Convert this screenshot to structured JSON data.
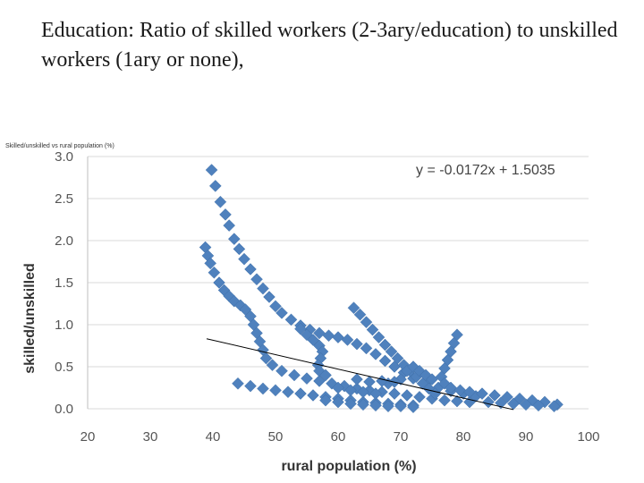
{
  "slide": {
    "title": "Education: Ratio of skilled workers (2-3ary/education) to unskilled workers (1ary or none),"
  },
  "chart_data": {
    "type": "scatter",
    "title": "Skilled/unskilled vs rural population (%)",
    "xlabel": "rural population (%)",
    "ylabel": "skilled/unskilled",
    "xlim": [
      20,
      100
    ],
    "ylim": [
      0,
      3
    ],
    "xticks": [
      "20",
      "30",
      "40",
      "50",
      "60",
      "70",
      "80",
      "90",
      "100"
    ],
    "yticks": [
      "0.0",
      "0.5",
      "1.0",
      "1.5",
      "2.0",
      "2.5",
      "3.0"
    ],
    "grid": "horizontal",
    "marker": "diamond",
    "marker_color": "#4f81bd",
    "trendline": {
      "equation": "y = -0.0172x + 1.5035",
      "slope": -0.0172,
      "intercept": 1.5035,
      "x_range": [
        39,
        88
      ],
      "color": "#000000"
    },
    "series": [
      {
        "points": [
          [
            39.8,
            2.84
          ],
          [
            40.4,
            2.65
          ],
          [
            41.2,
            2.46
          ],
          [
            42.0,
            2.31
          ],
          [
            42.6,
            2.18
          ],
          [
            43.4,
            2.02
          ],
          [
            44.2,
            1.9
          ],
          [
            45.0,
            1.78
          ],
          [
            46.0,
            1.66
          ],
          [
            47.0,
            1.54
          ],
          [
            48.0,
            1.43
          ],
          [
            49.0,
            1.33
          ],
          [
            50.0,
            1.22
          ],
          [
            51.0,
            1.14
          ],
          [
            52.5,
            1.06
          ],
          [
            54.0,
            0.99
          ],
          [
            55.5,
            0.94
          ],
          [
            57.0,
            0.9
          ],
          [
            58.5,
            0.87
          ],
          [
            60.0,
            0.85
          ],
          [
            61.5,
            0.82
          ],
          [
            63.0,
            0.77
          ],
          [
            64.5,
            0.72
          ],
          [
            66.0,
            0.65
          ],
          [
            67.5,
            0.57
          ],
          [
            69.0,
            0.5
          ],
          [
            70.5,
            0.43
          ],
          [
            72.0,
            0.36
          ],
          [
            74.0,
            0.3
          ],
          [
            76.0,
            0.25
          ],
          [
            78.0,
            0.21
          ],
          [
            80.0,
            0.18
          ],
          [
            82.0,
            0.15
          ],
          [
            38.8,
            1.92
          ],
          [
            39.2,
            1.82
          ],
          [
            39.6,
            1.73
          ],
          [
            40.2,
            1.62
          ],
          [
            41.0,
            1.5
          ],
          [
            41.8,
            1.41
          ],
          [
            42.6,
            1.34
          ],
          [
            43.4,
            1.28
          ],
          [
            44.4,
            1.23
          ],
          [
            45.2,
            1.18
          ],
          [
            46.0,
            1.1
          ],
          [
            46.5,
            1.0
          ],
          [
            47.0,
            0.9
          ],
          [
            47.5,
            0.8
          ],
          [
            48.0,
            0.7
          ],
          [
            48.5,
            0.6
          ],
          [
            49.5,
            0.52
          ],
          [
            51.0,
            0.45
          ],
          [
            53.0,
            0.4
          ],
          [
            55.0,
            0.36
          ],
          [
            57.0,
            0.33
          ],
          [
            59.0,
            0.3
          ],
          [
            61.0,
            0.27
          ],
          [
            63.0,
            0.24
          ],
          [
            65.0,
            0.22
          ],
          [
            67.0,
            0.2
          ],
          [
            69.0,
            0.18
          ],
          [
            71.0,
            0.16
          ],
          [
            73.0,
            0.14
          ],
          [
            75.0,
            0.12
          ],
          [
            77.0,
            0.1
          ],
          [
            79.0,
            0.09
          ],
          [
            81.0,
            0.08
          ],
          [
            44.0,
            0.3
          ],
          [
            46.0,
            0.27
          ],
          [
            48.0,
            0.24
          ],
          [
            50.0,
            0.22
          ],
          [
            52.0,
            0.2
          ],
          [
            54.0,
            0.18
          ],
          [
            56.0,
            0.16
          ],
          [
            58.0,
            0.14
          ],
          [
            60.0,
            0.12
          ],
          [
            62.0,
            0.1
          ],
          [
            64.0,
            0.08
          ],
          [
            66.0,
            0.07
          ],
          [
            68.0,
            0.06
          ],
          [
            70.0,
            0.05
          ],
          [
            72.0,
            0.04
          ],
          [
            54.0,
            0.95
          ],
          [
            55.0,
            0.88
          ],
          [
            56.0,
            0.82
          ],
          [
            57.0,
            0.75
          ],
          [
            57.5,
            0.68
          ],
          [
            57.2,
            0.6
          ],
          [
            56.8,
            0.52
          ],
          [
            57.0,
            0.45
          ],
          [
            58.0,
            0.4
          ],
          [
            62.5,
            1.2
          ],
          [
            63.5,
            1.12
          ],
          [
            64.5,
            1.03
          ],
          [
            65.5,
            0.94
          ],
          [
            66.5,
            0.85
          ],
          [
            67.5,
            0.76
          ],
          [
            68.5,
            0.68
          ],
          [
            69.5,
            0.6
          ],
          [
            70.5,
            0.52
          ],
          [
            71.5,
            0.45
          ],
          [
            72.5,
            0.38
          ],
          [
            73.5,
            0.3
          ],
          [
            74.5,
            0.24
          ],
          [
            75.5,
            0.18
          ],
          [
            79.0,
            0.88
          ],
          [
            78.5,
            0.78
          ],
          [
            78.0,
            0.68
          ],
          [
            77.5,
            0.58
          ],
          [
            77.0,
            0.48
          ],
          [
            76.5,
            0.38
          ],
          [
            77.0,
            0.3
          ],
          [
            78.0,
            0.25
          ],
          [
            79.5,
            0.22
          ],
          [
            81.0,
            0.2
          ],
          [
            83.0,
            0.18
          ],
          [
            85.0,
            0.16
          ],
          [
            87.0,
            0.14
          ],
          [
            89.0,
            0.12
          ],
          [
            91.0,
            0.1
          ],
          [
            93.0,
            0.08
          ],
          [
            95.0,
            0.05
          ],
          [
            94.5,
            0.03
          ],
          [
            92.0,
            0.04
          ],
          [
            90.0,
            0.05
          ],
          [
            88.0,
            0.06
          ],
          [
            86.0,
            0.07
          ],
          [
            84.0,
            0.08
          ],
          [
            60.0,
            0.25
          ],
          [
            62.0,
            0.22
          ],
          [
            64.0,
            0.2
          ],
          [
            66.0,
            0.18
          ],
          [
            68.0,
            0.3
          ],
          [
            70.0,
            0.35
          ],
          [
            71.0,
            0.45
          ],
          [
            72.0,
            0.5
          ],
          [
            73.0,
            0.45
          ],
          [
            74.0,
            0.4
          ],
          [
            75.0,
            0.35
          ],
          [
            63.0,
            0.35
          ],
          [
            65.0,
            0.32
          ],
          [
            67.0,
            0.33
          ],
          [
            69.0,
            0.32
          ],
          [
            58.0,
            0.1
          ],
          [
            60.0,
            0.08
          ],
          [
            62.0,
            0.06
          ],
          [
            64.0,
            0.05
          ],
          [
            66.0,
            0.04
          ],
          [
            68.0,
            0.03
          ],
          [
            70.0,
            0.03
          ],
          [
            72.0,
            0.02
          ]
        ]
      }
    ]
  }
}
